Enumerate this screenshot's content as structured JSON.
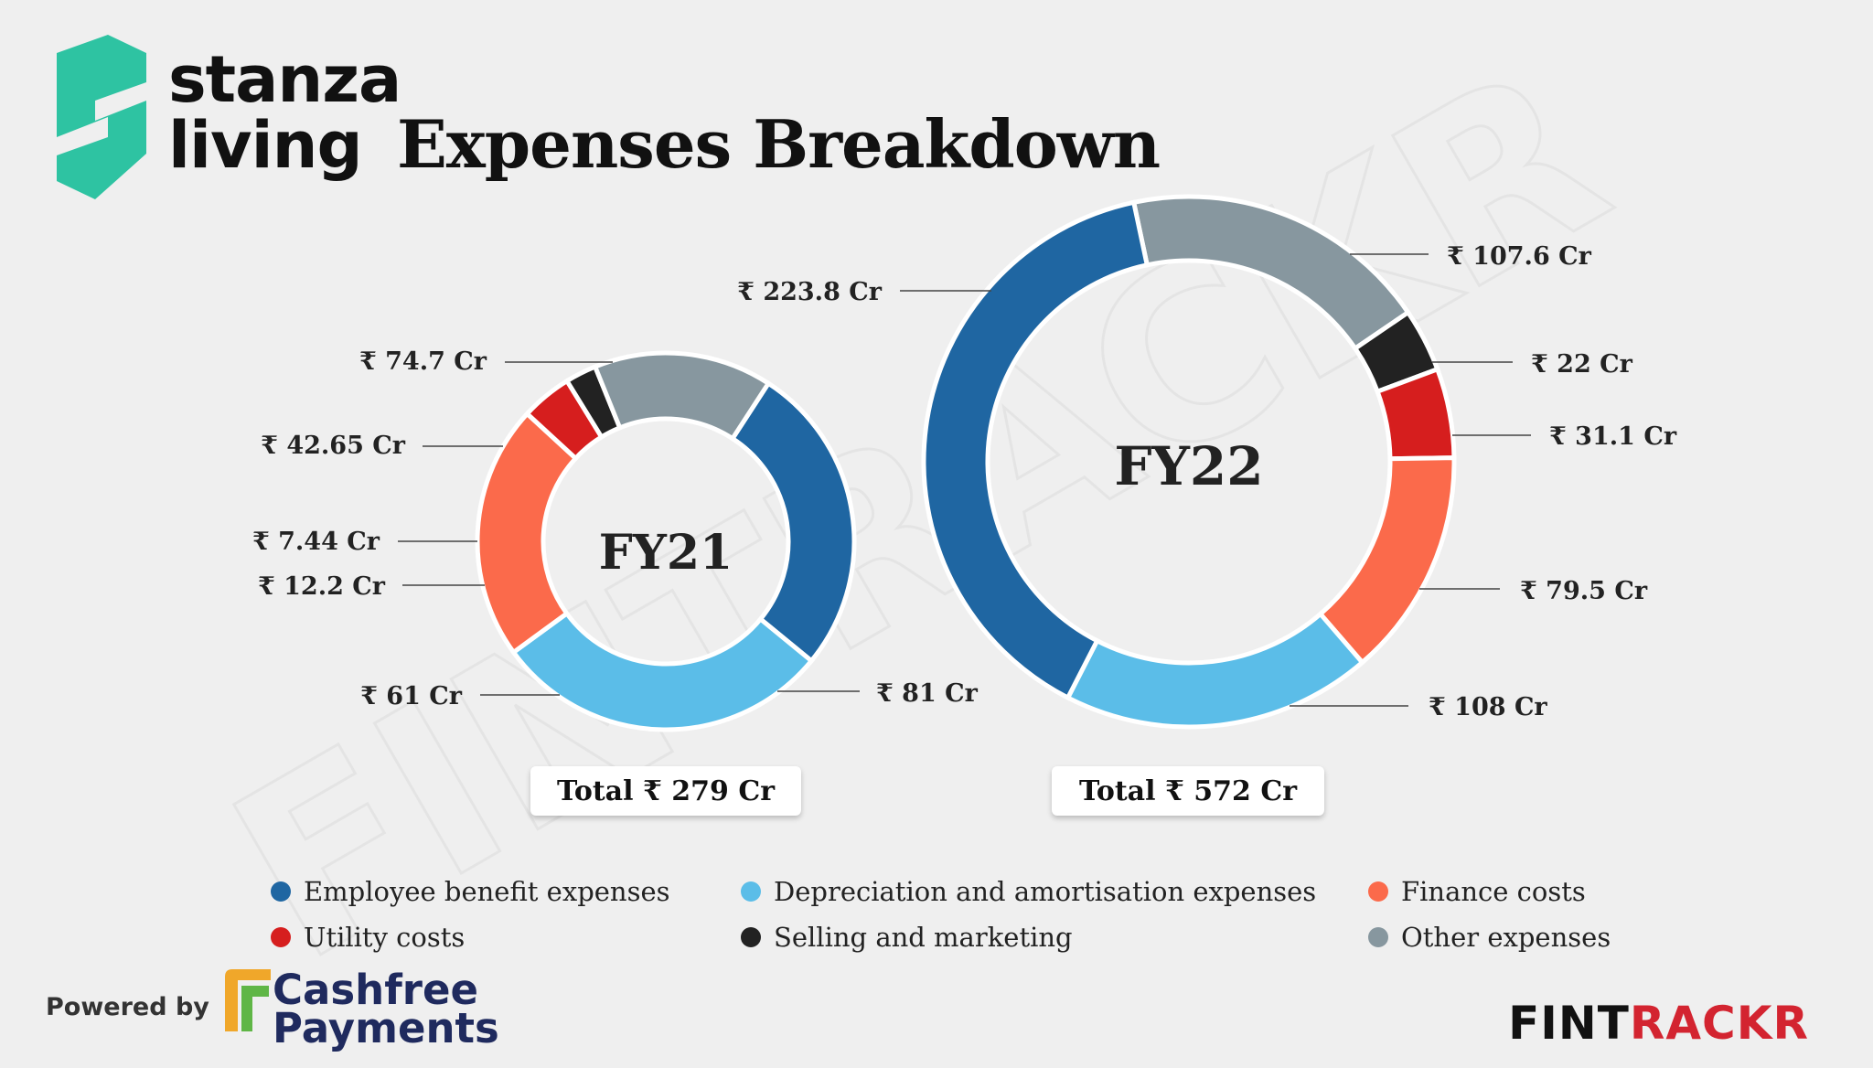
{
  "brand": {
    "line1": "stanza",
    "line2": "living"
  },
  "title": "Expenses Breakdown",
  "chart_data": [
    {
      "type": "pie",
      "center_label": "FY21",
      "total_label": "Total ₹ 279 Cr",
      "slices": [
        {
          "label": "Employee benefit expenses",
          "value": 74.7,
          "display": "₹ 74.7 Cr",
          "color": "#1f66a2"
        },
        {
          "label": "Depreciation and amortisation expenses",
          "value": 81,
          "display": "₹ 81 Cr",
          "color": "#5bbde8"
        },
        {
          "label": "Finance costs",
          "value": 61,
          "display": "₹ 61 Cr",
          "color": "#fb6a4b"
        },
        {
          "label": "Utility costs",
          "value": 12.2,
          "display": "₹ 12.2 Cr",
          "color": "#d61e1e"
        },
        {
          "label": "Selling and marketing",
          "value": 7.44,
          "display": "₹ 7.44 Cr",
          "color": "#222222"
        },
        {
          "label": "Other expenses",
          "value": 42.65,
          "display": "₹ 42.65 Cr",
          "color": "#87979f"
        }
      ]
    },
    {
      "type": "pie",
      "center_label": "FY22",
      "total_label": "Total ₹ 572 Cr",
      "slices": [
        {
          "label": "Other expenses",
          "value": 107.6,
          "display": "₹ 107.6 Cr",
          "color": "#87979f"
        },
        {
          "label": "Selling and marketing",
          "value": 22,
          "display": "₹ 22 Cr",
          "color": "#222222"
        },
        {
          "label": "Utility costs",
          "value": 31.1,
          "display": "₹ 31.1 Cr",
          "color": "#d61e1e"
        },
        {
          "label": "Finance costs",
          "value": 79.5,
          "display": "₹ 79.5 Cr",
          "color": "#fb6a4b"
        },
        {
          "label": "Depreciation and amortisation expenses",
          "value": 108,
          "display": "₹ 108 Cr",
          "color": "#5bbde8"
        },
        {
          "label": "Employee benefit expenses",
          "value": 223.8,
          "display": "₹ 223.8 Cr",
          "color": "#1f66a2"
        }
      ]
    }
  ],
  "legend": [
    {
      "label": "Employee benefit expenses",
      "color": "#1f66a2"
    },
    {
      "label": "Depreciation and amortisation expenses",
      "color": "#5bbde8"
    },
    {
      "label": "Finance costs",
      "color": "#fb6a4b"
    },
    {
      "label": "Utility costs",
      "color": "#d61e1e"
    },
    {
      "label": "Selling and marketing",
      "color": "#222222"
    },
    {
      "label": "Other expenses",
      "color": "#87979f"
    }
  ],
  "footer": {
    "powered_by": "Powered by",
    "cashfree_line1": "Cashfree",
    "cashfree_line2": "Payments",
    "fintrackr_a": "FINT",
    "fintrackr_b": "RACKR"
  }
}
